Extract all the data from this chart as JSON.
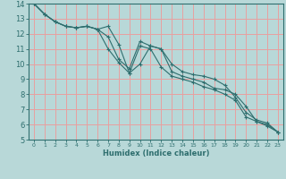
{
  "title": "",
  "xlabel": "Humidex (Indice chaleur)",
  "bg_color": "#b8d8d8",
  "grid_color": "#e8a0a0",
  "line_color": "#2e6e6e",
  "xlim": [
    -0.5,
    23.5
  ],
  "ylim": [
    5,
    14
  ],
  "xticks": [
    0,
    1,
    2,
    3,
    4,
    5,
    6,
    7,
    8,
    9,
    10,
    11,
    12,
    13,
    14,
    15,
    16,
    17,
    18,
    19,
    20,
    21,
    22,
    23
  ],
  "yticks": [
    5,
    6,
    7,
    8,
    9,
    10,
    11,
    12,
    13,
    14
  ],
  "series": [
    {
      "x": [
        0,
        1,
        2,
        3,
        4,
        5,
        6,
        7,
        8,
        9,
        10,
        11,
        12,
        13,
        14,
        15,
        16,
        17,
        18,
        19,
        20,
        21,
        22,
        23
      ],
      "y": [
        14.0,
        13.3,
        12.8,
        12.5,
        12.4,
        12.5,
        12.3,
        12.5,
        11.3,
        9.4,
        10.0,
        11.2,
        11.0,
        10.0,
        9.5,
        9.3,
        9.2,
        9.0,
        8.6,
        7.8,
        6.8,
        6.3,
        6.1,
        5.5
      ]
    },
    {
      "x": [
        0,
        1,
        2,
        3,
        4,
        5,
        6,
        7,
        8,
        9,
        10,
        11,
        12,
        13,
        14,
        15,
        16,
        17,
        18,
        19,
        20,
        21,
        22,
        23
      ],
      "y": [
        14.0,
        13.3,
        12.8,
        12.5,
        12.4,
        12.5,
        12.3,
        11.8,
        10.3,
        9.7,
        11.5,
        11.2,
        11.0,
        9.5,
        9.2,
        9.0,
        8.8,
        8.4,
        8.3,
        8.0,
        7.2,
        6.2,
        6.0,
        5.5
      ]
    },
    {
      "x": [
        0,
        1,
        2,
        3,
        4,
        5,
        6,
        7,
        8,
        9,
        10,
        11,
        12,
        13,
        14,
        15,
        16,
        17,
        18,
        19,
        20,
        21,
        22,
        23
      ],
      "y": [
        14.0,
        13.3,
        12.8,
        12.5,
        12.4,
        12.5,
        12.3,
        11.0,
        10.1,
        9.4,
        11.2,
        11.0,
        9.8,
        9.2,
        9.0,
        8.8,
        8.5,
        8.3,
        8.0,
        7.6,
        6.5,
        6.2,
        5.9,
        5.5
      ]
    }
  ]
}
